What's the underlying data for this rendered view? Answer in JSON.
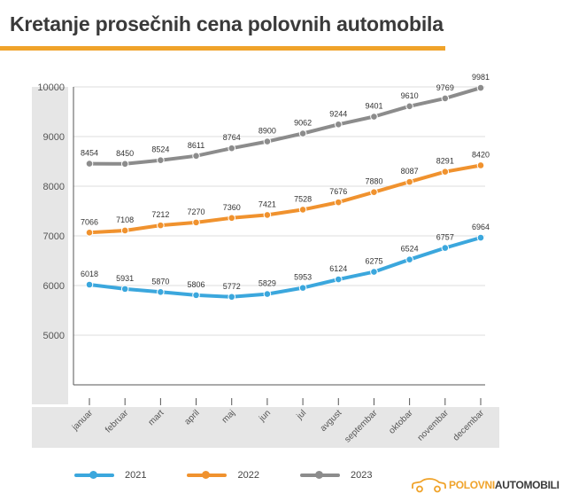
{
  "title": "Kretanje prosečnih cena polovnih automobila",
  "colors": {
    "accent": "#f0a32a",
    "panel": "#e6e6e6",
    "series_2021": "#3ba7dd",
    "series_2022": "#f0922e",
    "series_2023": "#8c8c8c"
  },
  "chart_data": {
    "type": "line",
    "title": "Kretanje prosečnih cena polovnih automobila",
    "xlabel": "",
    "ylabel": "",
    "categories": [
      "januar",
      "februar",
      "mart",
      "april",
      "maj",
      "jun",
      "jul",
      "avgust",
      "septembar",
      "oktobar",
      "novembar",
      "decembar"
    ],
    "ylim": [
      4000,
      10000
    ],
    "yticks": [
      5000,
      6000,
      7000,
      8000,
      9000,
      10000
    ],
    "grid": true,
    "legend_position": "bottom",
    "series": [
      {
        "name": "2021",
        "color": "#3ba7dd",
        "values": [
          6018,
          5931,
          5870,
          5806,
          5772,
          5829,
          5953,
          6124,
          6275,
          6524,
          6757,
          6964
        ]
      },
      {
        "name": "2022",
        "color": "#f0922e",
        "values": [
          7066,
          7108,
          7212,
          7270,
          7360,
          7421,
          7528,
          7676,
          7880,
          8087,
          8291,
          8420
        ]
      },
      {
        "name": "2023",
        "color": "#8c8c8c",
        "values": [
          8454,
          8450,
          8524,
          8611,
          8764,
          8900,
          9062,
          9244,
          9401,
          9610,
          9769,
          9981
        ]
      }
    ]
  },
  "logo": {
    "part_a": "POLOVNI",
    "part_b": "AUTOMOBILI",
    "icon": "car-outline-icon"
  }
}
